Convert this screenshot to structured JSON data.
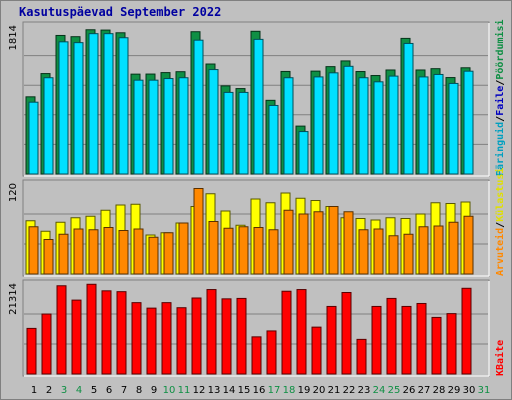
{
  "title": "Kasutuspäevad September 2022",
  "colors": {
    "hits": "#00e0ff",
    "files": "#00c0ff",
    "pages": "#0000c0",
    "sites": "#ffff00",
    "visits": "#ff8800",
    "kbytes": "#ff0000",
    "weekend": "#0f8f44",
    "weekday": "#000000",
    "panel_bg": "#c0c0c0",
    "grid": "#808080",
    "axis_text": "#000000"
  },
  "chart_data": [
    {
      "type": "bar",
      "ymax_label": "1814",
      "ylim": [
        0,
        1814
      ],
      "grid": true,
      "right_labels": [
        "Päringuid",
        "Faile",
        "Pöördumisi"
      ],
      "right_separator": "/",
      "right_label_colors": [
        "#00a0c0",
        "#0000c0",
        "#0f8f44"
      ],
      "categories": [
        "1",
        "2",
        "3",
        "4",
        "5",
        "6",
        "7",
        "8",
        "9",
        "10",
        "11",
        "12",
        "13",
        "14",
        "15",
        "16",
        "17",
        "18",
        "19",
        "20",
        "21",
        "22",
        "23",
        "24",
        "25",
        "26",
        "27",
        "28",
        "29",
        "30"
      ],
      "series": [
        {
          "name": "Pöördumisi",
          "color": "#0f8f44",
          "values": [
            946,
            1231,
            1698,
            1683,
            1768,
            1764,
            1731,
            1224,
            1225,
            1243,
            1254,
            1744,
            1348,
            1080,
            1047,
            1749,
            903,
            1257,
            587,
            1261,
            1316,
            1386,
            1256,
            1207,
            1275,
            1662,
            1275,
            1291,
            1182,
            1302
          ]
        },
        {
          "name": "Faile",
          "color": "#00e0ff",
          "values": [
            880,
            1180,
            1620,
            1610,
            1720,
            1720,
            1670,
            1150,
            1150,
            1170,
            1180,
            1640,
            1280,
            1000,
            1000,
            1650,
            840,
            1180,
            520,
            1190,
            1240,
            1320,
            1180,
            1130,
            1200,
            1600,
            1190,
            1220,
            1110,
            1260
          ]
        }
      ]
    },
    {
      "type": "bar",
      "ymax_label": "120",
      "ylim": [
        0,
        120
      ],
      "grid": true,
      "right_labels": [
        "Arvuteid",
        "Külastusi"
      ],
      "right_separator": "/",
      "right_label_colors": [
        "#ff8800",
        "#e0e000"
      ],
      "categories": [
        "1",
        "2",
        "3",
        "4",
        "5",
        "6",
        "7",
        "8",
        "9",
        "10",
        "11",
        "12",
        "13",
        "14",
        "15",
        "16",
        "17",
        "18",
        "19",
        "20",
        "21",
        "22",
        "23",
        "24",
        "25",
        "26",
        "27",
        "28",
        "29",
        "30"
      ],
      "series": [
        {
          "name": "Külastusi",
          "color": "#ffff00",
          "values": [
            71,
            57,
            69,
            75,
            77,
            85,
            92,
            93,
            52,
            55,
            68,
            90,
            107,
            84,
            65,
            100,
            95,
            108,
            101,
            98,
            90,
            75,
            74,
            72,
            75,
            74,
            80,
            95,
            94,
            96
          ]
        },
        {
          "name": "Arvuteid",
          "color": "#ff8800",
          "values": [
            63,
            46,
            53,
            60,
            59,
            62,
            58,
            60,
            49,
            55,
            68,
            114,
            70,
            61,
            63,
            62,
            59,
            85,
            80,
            83,
            90,
            83,
            59,
            60,
            51,
            53,
            63,
            64,
            69,
            77
          ]
        }
      ]
    },
    {
      "type": "bar",
      "ymax_label": "21314",
      "ylim": [
        0,
        21314
      ],
      "grid": true,
      "right_labels": [
        "KBaite"
      ],
      "right_separator": "/",
      "right_label_colors": [
        "#ff0000"
      ],
      "categories": [
        "1",
        "2",
        "3",
        "4",
        "5",
        "6",
        "7",
        "8",
        "9",
        "10",
        "11",
        "12",
        "13",
        "14",
        "15",
        "16",
        "17",
        "18",
        "19",
        "20",
        "21",
        "22",
        "23",
        "24",
        "25",
        "26",
        "27",
        "28",
        "29",
        "30"
      ],
      "series": [
        {
          "name": "KBaite",
          "color": "#ff0000",
          "values": [
            10800,
            14200,
            20900,
            17500,
            21250,
            19700,
            19500,
            16900,
            15600,
            16900,
            15700,
            18000,
            20000,
            17800,
            17900,
            8800,
            10200,
            19600,
            20000,
            11100,
            16000,
            19300,
            8200,
            16000,
            17900,
            16000,
            16700,
            13400,
            14300,
            20300
          ]
        }
      ]
    }
  ],
  "x_axis": {
    "labels": [
      "1",
      "2",
      "3",
      "4",
      "5",
      "6",
      "7",
      "8",
      "9",
      "10",
      "11",
      "12",
      "13",
      "14",
      "15",
      "16",
      "17",
      "18",
      "19",
      "20",
      "21",
      "22",
      "23",
      "24",
      "25",
      "26",
      "27",
      "28",
      "29",
      "30",
      "31"
    ],
    "weekend_days": [
      3,
      4,
      10,
      11,
      17,
      18,
      24,
      25,
      31
    ]
  }
}
